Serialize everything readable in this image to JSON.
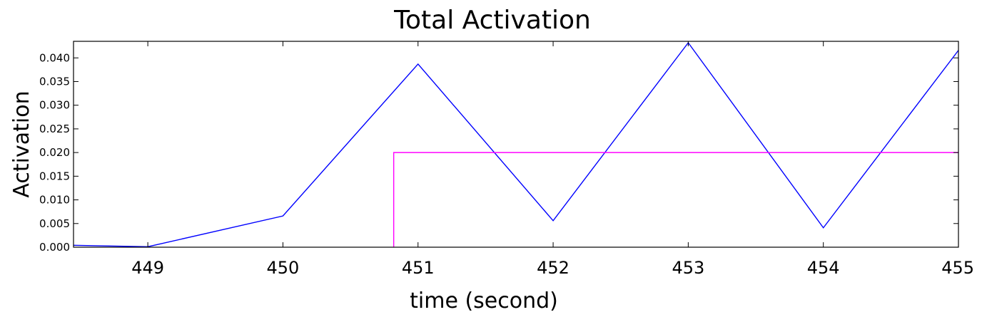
{
  "chart_data": {
    "type": "line",
    "title": "Total Activation",
    "xlabel": "time (second)",
    "ylabel": "Activation",
    "xlim": [
      448.45,
      455
    ],
    "ylim": [
      0,
      0.0435
    ],
    "xticks": [
      449,
      450,
      451,
      452,
      453,
      454,
      455
    ],
    "xtick_labels": [
      "449",
      "450",
      "451",
      "452",
      "453",
      "454",
      "455"
    ],
    "yticks": [
      0.0,
      0.005,
      0.01,
      0.015,
      0.02,
      0.025,
      0.03,
      0.035,
      0.04
    ],
    "ytick_labels": [
      "0.000",
      "0.005",
      "0.010",
      "0.015",
      "0.020",
      "0.025",
      "0.030",
      "0.035",
      "0.040"
    ],
    "grid": false,
    "legend": "none",
    "series": [
      {
        "color": "#0000ff",
        "x": [
          448.45,
          449,
          450,
          451,
          452,
          453,
          454,
          455
        ],
        "y": [
          0.0004,
          0.0001,
          0.0066,
          0.0387,
          0.0056,
          0.0432,
          0.0041,
          0.0416
        ]
      },
      {
        "color": "#ff00ff",
        "x": [
          450.82,
          450.82,
          455
        ],
        "y": [
          0.0,
          0.02,
          0.02
        ]
      }
    ]
  }
}
